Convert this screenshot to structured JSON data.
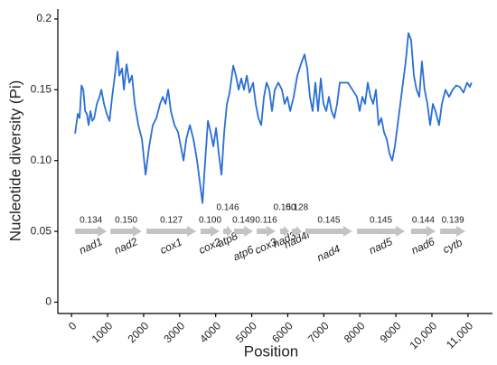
{
  "chart_data": {
    "type": "line",
    "xlabel": "Position",
    "ylabel": "Nucleotide diversity (Pi)",
    "xlim": [
      -380,
      11680
    ],
    "ylim": [
      -0.008,
      0.207
    ],
    "xticks": [
      0,
      1000,
      2000,
      3000,
      4000,
      5000,
      6000,
      7000,
      8000,
      9000,
      {
        "value": 10000,
        "label": "10,000"
      },
      {
        "value": 11000,
        "label": "11,000"
      }
    ],
    "yticks": [
      0,
      0.05,
      0.1,
      0.15,
      0.2,
      {
        "value": 0.1,
        "label": "0.10"
      }
    ],
    "series": [
      {
        "color": "#2a6fd6",
        "x": [
          100,
          175,
          225,
          276,
          326,
          376,
          426,
          476,
          526,
          576,
          627,
          702,
          777,
          827,
          902,
          977,
          1053,
          1128,
          1203,
          1278,
          1328,
          1403,
          1454,
          1529,
          1604,
          1679,
          1754,
          1854,
          1955,
          2055,
          2155,
          2255,
          2356,
          2456,
          2531,
          2606,
          2681,
          2757,
          2857,
          2957,
          3032,
          3107,
          3183,
          3283,
          3383,
          3483,
          3558,
          3634,
          3709,
          3784,
          3859,
          3934,
          4010,
          4085,
          4160,
          4235,
          4310,
          4386,
          4486,
          4561,
          4636,
          4711,
          4786,
          4862,
          4937,
          5037,
          5112,
          5187,
          5263,
          5338,
          5413,
          5488,
          5563,
          5639,
          5739,
          5839,
          5914,
          5989,
          6065,
          6165,
          6265,
          6365,
          6465,
          6541,
          6616,
          6691,
          6766,
          6841,
          6917,
          6992,
          7067,
          7142,
          7217,
          7292,
          7368,
          7443,
          7543,
          7668,
          7794,
          7919,
          7994,
          8069,
          8145,
          8220,
          8295,
          8370,
          8445,
          8520,
          8596,
          8671,
          8746,
          8821,
          8896,
          8971,
          9047,
          9122,
          9197,
          9272,
          9347,
          9423,
          9498,
          9573,
          9648,
          9723,
          9798,
          9874,
          9949,
          10024,
          10099,
          10199,
          10275,
          10375,
          10475,
          10575,
          10675,
          10776,
          10876,
          10976,
          11051,
          11102
        ],
        "values": [
          0.119,
          0.133,
          0.13,
          0.153,
          0.15,
          0.135,
          0.133,
          0.125,
          0.135,
          0.128,
          0.13,
          0.14,
          0.145,
          0.15,
          0.14,
          0.133,
          0.128,
          0.145,
          0.16,
          0.177,
          0.16,
          0.165,
          0.15,
          0.168,
          0.155,
          0.16,
          0.14,
          0.125,
          0.115,
          0.09,
          0.11,
          0.125,
          0.13,
          0.14,
          0.145,
          0.14,
          0.15,
          0.135,
          0.125,
          0.12,
          0.11,
          0.1,
          0.115,
          0.125,
          0.115,
          0.1,
          0.085,
          0.07,
          0.1,
          0.128,
          0.12,
          0.11,
          0.123,
          0.105,
          0.09,
          0.12,
          0.14,
          0.148,
          0.167,
          0.16,
          0.15,
          0.158,
          0.15,
          0.16,
          0.148,
          0.155,
          0.14,
          0.13,
          0.125,
          0.145,
          0.155,
          0.15,
          0.135,
          0.15,
          0.155,
          0.15,
          0.14,
          0.145,
          0.135,
          0.145,
          0.16,
          0.168,
          0.175,
          0.165,
          0.145,
          0.135,
          0.155,
          0.135,
          0.158,
          0.14,
          0.135,
          0.145,
          0.135,
          0.13,
          0.14,
          0.155,
          0.155,
          0.155,
          0.15,
          0.145,
          0.135,
          0.145,
          0.14,
          0.155,
          0.145,
          0.14,
          0.15,
          0.125,
          0.13,
          0.12,
          0.115,
          0.105,
          0.1,
          0.11,
          0.125,
          0.14,
          0.155,
          0.17,
          0.19,
          0.185,
          0.16,
          0.15,
          0.145,
          0.17,
          0.15,
          0.14,
          0.125,
          0.14,
          0.135,
          0.125,
          0.14,
          0.15,
          0.145,
          0.15,
          0.153,
          0.152,
          0.148,
          0.155,
          0.152,
          0.155
        ]
      }
    ],
    "genes": {
      "color": "#c3c3c3",
      "names": [
        "nad1",
        "nad2",
        "cox1",
        "cox2",
        "atp8",
        "atp6",
        "cox3",
        "nad3",
        "nad4l",
        "nad4",
        "nad5",
        "nad6",
        "cytb"
      ],
      "starts": [
        100,
        1080,
        2080,
        3580,
        4210,
        4510,
        5140,
        5790,
        6120,
        6490,
        7920,
        9420,
        10230
      ],
      "ends": [
        980,
        1950,
        3460,
        4110,
        4460,
        5040,
        5660,
        6040,
        6390,
        7790,
        9250,
        10100,
        10930
      ],
      "values": [
        0.134,
        0.15,
        0.127,
        0.1,
        0.146,
        0.149,
        0.116,
        0.15,
        0.128,
        0.145,
        0.145,
        0.144,
        0.139
      ],
      "value_labels": [
        "0.134",
        "0.150",
        "0.127",
        "0.100",
        "0.146",
        "0.149",
        "0.116",
        "0.150",
        "0.128",
        "0.145",
        "0.145",
        "0.144",
        "0.139"
      ]
    }
  }
}
